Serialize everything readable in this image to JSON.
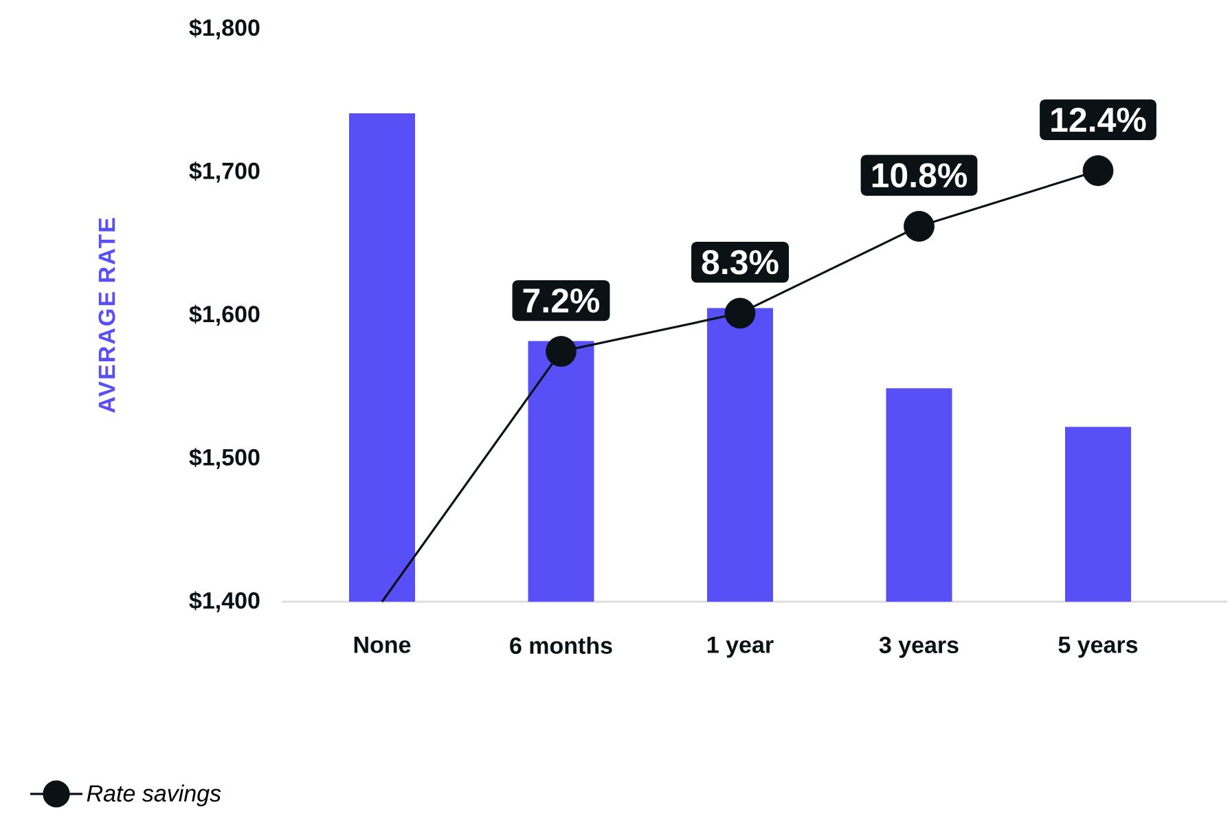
{
  "chart_data": {
    "type": "bar",
    "ylabel": "AVERAGE RATE",
    "categories": [
      "None",
      "6 months",
      "1 year",
      "3 years",
      "5 years"
    ],
    "ylim": [
      1400,
      1800
    ],
    "yticks": [
      {
        "value": 1400,
        "label": "$1,400"
      },
      {
        "value": 1500,
        "label": "$1,500"
      },
      {
        "value": 1600,
        "label": "$1,600"
      },
      {
        "value": 1700,
        "label": "$1,700"
      },
      {
        "value": 1800,
        "label": "$1,800"
      }
    ],
    "legend": "bottom left",
    "series": [
      {
        "color": "#584ff7",
        "values": [
          1741,
          1582,
          1605,
          1549,
          1522
        ]
      },
      {
        "type": "line",
        "name": "Rate savings",
        "axis": "y2",
        "color": "#0b1215",
        "marker": "circle",
        "line_style": "solid",
        "values": [
          0,
          7.2,
          8.3,
          10.8,
          12.4
        ],
        "value_labels": [
          null,
          "7.2%",
          "8.3%",
          "10.8%",
          "12.4%"
        ]
      }
    ]
  }
}
